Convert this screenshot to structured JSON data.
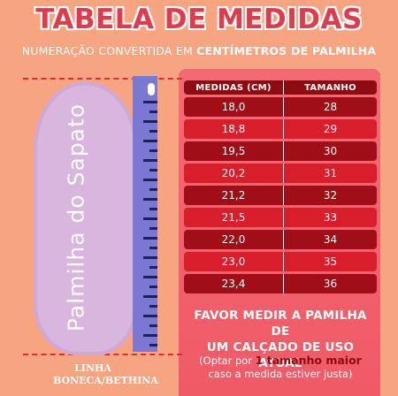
{
  "title": "TABELA DE MEDIDAS",
  "subtitle": {
    "prefix": "NUMERAÇÃO CONVERTIDA EM ",
    "bold": "CENTÍMETROS DE PALMILHA"
  },
  "insole_label": "Palmilha do Sapato",
  "line_label": [
    "LINHA",
    "BONECA/BETHINA"
  ],
  "table": {
    "headers": [
      "MEDIDAS (CM)",
      "TAMANHO"
    ],
    "rows": [
      [
        "18,0",
        "28"
      ],
      [
        "18,8",
        "29"
      ],
      [
        "19,5",
        "30"
      ],
      [
        "20,2",
        "31"
      ],
      [
        "21,2",
        "32"
      ],
      [
        "21,5",
        "33"
      ],
      [
        "22,0",
        "34"
      ],
      [
        "23,0",
        "35"
      ],
      [
        "23,4",
        "36"
      ]
    ],
    "row_colors": [
      "#a00f18",
      "#d81e2a",
      "#a00f18",
      "#d81e2a",
      "#a00f18",
      "#d81e2a",
      "#a00f18",
      "#d81e2a",
      "#a00f18"
    ]
  },
  "note": [
    "FAVOR MEDIR A PAMILHA DE",
    "UM CALÇADO DE USO ATUAL"
  ],
  "hint": {
    "pre": "(Optar por ",
    "bold": "1 tamanho maior",
    "post": "caso a medida estiver justa)"
  },
  "colors": {
    "background": "#f7a481",
    "title": "#e23a4d",
    "panel": "#f05a66",
    "header": "#8c0c12",
    "insole": "#d8b6dd",
    "ruler": "#7b78d4"
  }
}
